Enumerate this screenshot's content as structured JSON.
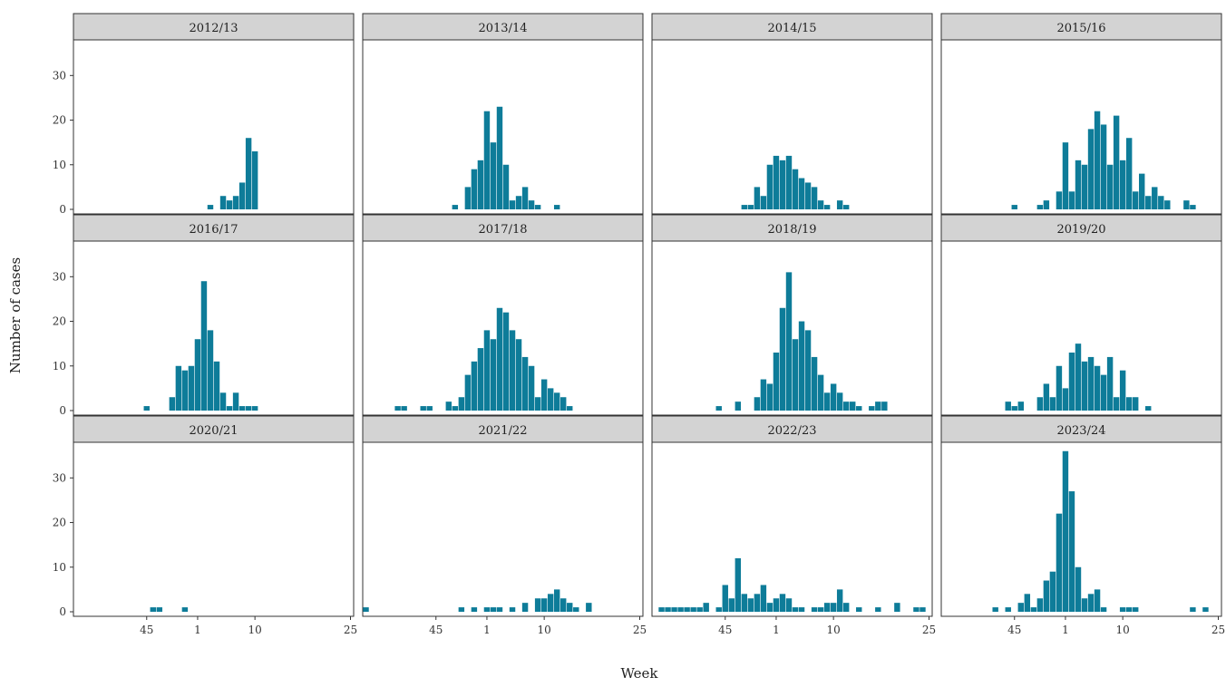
{
  "page": {
    "y_axis_label": "Number of cases",
    "x_axis_label": "Week"
  },
  "chart_data": {
    "type": "bar",
    "layout": "faceted grid, 3 rows x 4 columns, shared axes",
    "ylim": [
      0,
      39
    ],
    "y_ticks": [
      0,
      10,
      20,
      30
    ],
    "x_ticks": [
      "45",
      "1",
      "10",
      "25"
    ],
    "x_range_weeks": [
      "week 34",
      "week 25 of the following year"
    ],
    "bar_color": "#0e7c99",
    "strip_fill": "#d3d3d3",
    "grid": false,
    "facets": [
      {
        "title": "2012/13",
        "bars": [
          [
            3,
            1
          ],
          [
            5,
            3
          ],
          [
            6,
            2
          ],
          [
            7,
            3
          ],
          [
            8,
            6
          ],
          [
            9,
            16
          ],
          [
            10,
            13
          ]
        ]
      },
      {
        "title": "2013/14",
        "bars": [
          [
            48,
            1
          ],
          [
            50,
            5
          ],
          [
            51,
            9
          ],
          [
            52,
            11
          ],
          [
            1,
            22
          ],
          [
            2,
            15
          ],
          [
            3,
            23
          ],
          [
            4,
            10
          ],
          [
            5,
            2
          ],
          [
            6,
            3
          ],
          [
            7,
            5
          ],
          [
            8,
            2
          ],
          [
            9,
            1
          ],
          [
            12,
            1
          ]
        ]
      },
      {
        "title": "2014/15",
        "bars": [
          [
            48,
            1
          ],
          [
            49,
            1
          ],
          [
            50,
            5
          ],
          [
            51,
            3
          ],
          [
            52,
            10
          ],
          [
            1,
            12
          ],
          [
            2,
            11
          ],
          [
            3,
            12
          ],
          [
            4,
            9
          ],
          [
            5,
            7
          ],
          [
            6,
            6
          ],
          [
            7,
            5
          ],
          [
            8,
            2
          ],
          [
            9,
            1
          ],
          [
            11,
            2
          ],
          [
            12,
            1
          ]
        ]
      },
      {
        "title": "2015/16",
        "bars": [
          [
            45,
            1
          ],
          [
            49,
            1
          ],
          [
            50,
            2
          ],
          [
            52,
            4
          ],
          [
            1,
            15
          ],
          [
            2,
            4
          ],
          [
            3,
            11
          ],
          [
            4,
            10
          ],
          [
            5,
            18
          ],
          [
            6,
            22
          ],
          [
            7,
            19
          ],
          [
            8,
            10
          ],
          [
            9,
            21
          ],
          [
            10,
            11
          ],
          [
            11,
            16
          ],
          [
            12,
            4
          ],
          [
            13,
            8
          ],
          [
            14,
            3
          ],
          [
            15,
            5
          ],
          [
            16,
            3
          ],
          [
            17,
            2
          ],
          [
            20,
            2
          ],
          [
            21,
            1
          ]
        ]
      },
      {
        "title": "2016/17",
        "bars": [
          [
            45,
            1
          ],
          [
            49,
            3
          ],
          [
            50,
            10
          ],
          [
            51,
            9
          ],
          [
            52,
            10
          ],
          [
            1,
            16
          ],
          [
            2,
            29
          ],
          [
            3,
            18
          ],
          [
            4,
            11
          ],
          [
            5,
            4
          ],
          [
            6,
            1
          ],
          [
            7,
            4
          ],
          [
            8,
            1
          ],
          [
            9,
            1
          ],
          [
            10,
            1
          ]
        ]
      },
      {
        "title": "2017/18",
        "bars": [
          [
            39,
            1
          ],
          [
            40,
            1
          ],
          [
            43,
            1
          ],
          [
            44,
            1
          ],
          [
            47,
            2
          ],
          [
            48,
            1
          ],
          [
            49,
            3
          ],
          [
            50,
            8
          ],
          [
            51,
            11
          ],
          [
            52,
            14
          ],
          [
            1,
            18
          ],
          [
            2,
            16
          ],
          [
            3,
            23
          ],
          [
            4,
            22
          ],
          [
            5,
            18
          ],
          [
            6,
            16
          ],
          [
            7,
            12
          ],
          [
            8,
            10
          ],
          [
            9,
            3
          ],
          [
            10,
            7
          ],
          [
            11,
            5
          ],
          [
            12,
            4
          ],
          [
            13,
            3
          ],
          [
            14,
            1
          ]
        ]
      },
      {
        "title": "2018/19",
        "bars": [
          [
            44,
            1
          ],
          [
            47,
            2
          ],
          [
            50,
            3
          ],
          [
            51,
            7
          ],
          [
            52,
            6
          ],
          [
            1,
            13
          ],
          [
            2,
            23
          ],
          [
            3,
            31
          ],
          [
            4,
            16
          ],
          [
            5,
            20
          ],
          [
            6,
            18
          ],
          [
            7,
            12
          ],
          [
            8,
            8
          ],
          [
            9,
            4
          ],
          [
            10,
            6
          ],
          [
            11,
            4
          ],
          [
            12,
            2
          ],
          [
            13,
            2
          ],
          [
            14,
            1
          ],
          [
            16,
            1
          ],
          [
            17,
            2
          ],
          [
            18,
            2
          ]
        ]
      },
      {
        "title": "2019/20",
        "bars": [
          [
            44,
            2
          ],
          [
            45,
            1
          ],
          [
            46,
            2
          ],
          [
            49,
            3
          ],
          [
            50,
            6
          ],
          [
            51,
            3
          ],
          [
            52,
            10
          ],
          [
            1,
            5
          ],
          [
            2,
            13
          ],
          [
            3,
            15
          ],
          [
            4,
            11
          ],
          [
            5,
            12
          ],
          [
            6,
            10
          ],
          [
            7,
            8
          ],
          [
            8,
            12
          ],
          [
            9,
            3
          ],
          [
            10,
            9
          ],
          [
            11,
            3
          ],
          [
            12,
            3
          ],
          [
            14,
            1
          ]
        ]
      },
      {
        "title": "2020/21",
        "bars": [
          [
            46,
            1
          ],
          [
            47,
            1
          ],
          [
            51,
            1
          ]
        ]
      },
      {
        "title": "2021/22",
        "bars": [
          [
            34,
            1
          ],
          [
            49,
            1
          ],
          [
            51,
            1
          ],
          [
            1,
            1
          ],
          [
            2,
            1
          ],
          [
            3,
            1
          ],
          [
            5,
            1
          ],
          [
            7,
            2
          ],
          [
            9,
            3
          ],
          [
            10,
            3
          ],
          [
            11,
            4
          ],
          [
            12,
            5
          ],
          [
            13,
            3
          ],
          [
            14,
            2
          ],
          [
            15,
            1
          ],
          [
            17,
            2
          ]
        ]
      },
      {
        "title": "2022/23",
        "bars": [
          [
            35,
            1
          ],
          [
            36,
            1
          ],
          [
            37,
            1
          ],
          [
            38,
            1
          ],
          [
            39,
            1
          ],
          [
            40,
            1
          ],
          [
            41,
            1
          ],
          [
            42,
            2
          ],
          [
            44,
            1
          ],
          [
            45,
            6
          ],
          [
            46,
            3
          ],
          [
            47,
            12
          ],
          [
            48,
            4
          ],
          [
            49,
            3
          ],
          [
            50,
            4
          ],
          [
            51,
            6
          ],
          [
            52,
            2
          ],
          [
            1,
            3
          ],
          [
            2,
            4
          ],
          [
            3,
            3
          ],
          [
            4,
            1
          ],
          [
            5,
            1
          ],
          [
            7,
            1
          ],
          [
            8,
            1
          ],
          [
            9,
            2
          ],
          [
            10,
            2
          ],
          [
            11,
            5
          ],
          [
            12,
            2
          ],
          [
            14,
            1
          ],
          [
            17,
            1
          ],
          [
            20,
            2
          ],
          [
            23,
            1
          ],
          [
            24,
            1
          ]
        ]
      },
      {
        "title": "2023/24",
        "bars": [
          [
            42,
            1
          ],
          [
            44,
            1
          ],
          [
            46,
            2
          ],
          [
            47,
            4
          ],
          [
            48,
            1
          ],
          [
            49,
            3
          ],
          [
            50,
            7
          ],
          [
            51,
            9
          ],
          [
            52,
            22
          ],
          [
            1,
            36
          ],
          [
            2,
            27
          ],
          [
            3,
            10
          ],
          [
            4,
            3
          ],
          [
            5,
            4
          ],
          [
            6,
            5
          ],
          [
            7,
            1
          ],
          [
            10,
            1
          ],
          [
            11,
            1
          ],
          [
            12,
            1
          ],
          [
            21,
            1
          ],
          [
            23,
            1
          ]
        ]
      }
    ]
  }
}
